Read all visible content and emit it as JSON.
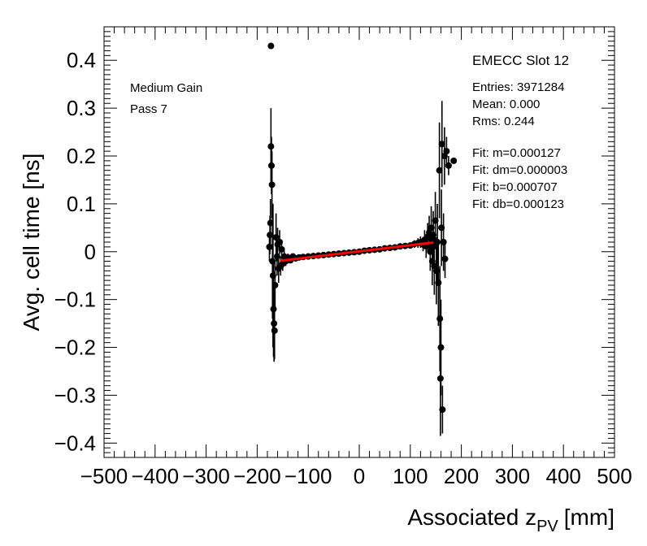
{
  "chart_data": {
    "type": "scatter",
    "xlabel_main": "Associated z",
    "xlabel_sub": "PV",
    "xlabel_unit": "[mm]",
    "ylabel": "Avg. cell time [ns]",
    "xlim": [
      -500,
      500
    ],
    "ylim": [
      -0.43,
      0.47
    ],
    "x_ticks": [
      -500,
      -400,
      -300,
      -200,
      -100,
      0,
      100,
      200,
      300,
      400,
      500
    ],
    "x_tick_labels": [
      "−500",
      "−400",
      "−300",
      "−200",
      "−100",
      "0",
      "100",
      "200",
      "300",
      "400",
      "500"
    ],
    "y_ticks": [
      -0.4,
      -0.3,
      -0.2,
      -0.1,
      0,
      0.1,
      0.2,
      0.3,
      0.4
    ],
    "y_tick_labels": [
      "−0.4",
      "−0.3",
      "−0.2",
      "−0.1",
      "0",
      "0.1",
      "0.2",
      "0.3",
      "0.4"
    ],
    "grid": false,
    "annotations_left": [
      "Medium Gain",
      "Pass 7"
    ],
    "stats_title": "EMECC Slot 12",
    "stats": [
      "Entries: 3971284",
      "Mean: 0.000",
      "Rms: 0.244"
    ],
    "fit_lines": [
      "Fit: m=0.000127",
      "Fit: dm=0.000003",
      "Fit: b=0.000707",
      "Fit: db=0.000123"
    ],
    "fit": {
      "m": 0.000127,
      "b": 0.000707,
      "x_range": [
        -155,
        145
      ],
      "color": "#ff0000"
    },
    "marker_color": "#000000",
    "points": [
      {
        "x": -173,
        "y": 0.43,
        "e": 0.0
      },
      {
        "x": -173,
        "y": 0.22,
        "e": 0.08
      },
      {
        "x": -172,
        "y": 0.18,
        "e": 0.06
      },
      {
        "x": -171,
        "y": 0.14,
        "e": 0.07
      },
      {
        "x": -175,
        "y": 0.035,
        "e": 0.04
      },
      {
        "x": -176,
        "y": 0.01,
        "e": 0.03
      },
      {
        "x": -174,
        "y": 0.06,
        "e": 0.05
      },
      {
        "x": -170,
        "y": -0.02,
        "e": 0.12
      },
      {
        "x": -169,
        "y": -0.05,
        "e": 0.15
      },
      {
        "x": -168,
        "y": -0.12,
        "e": 0.1
      },
      {
        "x": -167,
        "y": -0.15,
        "e": 0.08
      },
      {
        "x": -166,
        "y": -0.165,
        "e": 0.06
      },
      {
        "x": -165,
        "y": -0.07,
        "e": 0.05
      },
      {
        "x": -163,
        "y": 0.03,
        "e": 0.05
      },
      {
        "x": -161,
        "y": -0.01,
        "e": 0.04
      },
      {
        "x": -160,
        "y": 0.015,
        "e": 0.035
      },
      {
        "x": -158,
        "y": -0.035,
        "e": 0.03
      },
      {
        "x": -156,
        "y": 0.02,
        "e": 0.025
      },
      {
        "x": -154,
        "y": -0.03,
        "e": 0.02
      },
      {
        "x": -152,
        "y": 0.005,
        "e": 0.02
      },
      {
        "x": -150,
        "y": -0.025,
        "e": 0.015
      },
      {
        "x": -147,
        "y": -0.01,
        "e": 0.012
      },
      {
        "x": -144,
        "y": -0.02,
        "e": 0.01
      },
      {
        "x": -140,
        "y": -0.012,
        "e": 0.008
      },
      {
        "x": -135,
        "y": -0.018,
        "e": 0.006
      },
      {
        "x": -130,
        "y": -0.01,
        "e": 0.005
      },
      {
        "x": -125,
        "y": -0.014,
        "e": 0.004
      },
      {
        "x": -118,
        "y": -0.012,
        "e": 0.003
      },
      {
        "x": -110,
        "y": -0.011,
        "e": 0.003
      },
      {
        "x": -100,
        "y": -0.01,
        "e": 0.003
      },
      {
        "x": -90,
        "y": -0.009,
        "e": 0.003
      },
      {
        "x": -80,
        "y": -0.008,
        "e": 0.003
      },
      {
        "x": -70,
        "y": -0.007,
        "e": 0.003
      },
      {
        "x": -60,
        "y": -0.006,
        "e": 0.003
      },
      {
        "x": -50,
        "y": -0.005,
        "e": 0.003
      },
      {
        "x": -40,
        "y": -0.004,
        "e": 0.003
      },
      {
        "x": -30,
        "y": -0.003,
        "e": 0.003
      },
      {
        "x": -20,
        "y": -0.002,
        "e": 0.003
      },
      {
        "x": -10,
        "y": -0.001,
        "e": 0.003
      },
      {
        "x": 0,
        "y": 0.0,
        "e": 0.003
      },
      {
        "x": 10,
        "y": 0.002,
        "e": 0.003
      },
      {
        "x": 20,
        "y": 0.003,
        "e": 0.003
      },
      {
        "x": 30,
        "y": 0.004,
        "e": 0.003
      },
      {
        "x": 40,
        "y": 0.005,
        "e": 0.003
      },
      {
        "x": 50,
        "y": 0.007,
        "e": 0.003
      },
      {
        "x": 60,
        "y": 0.008,
        "e": 0.003
      },
      {
        "x": 70,
        "y": 0.009,
        "e": 0.003
      },
      {
        "x": 80,
        "y": 0.011,
        "e": 0.004
      },
      {
        "x": 90,
        "y": 0.012,
        "e": 0.005
      },
      {
        "x": 100,
        "y": 0.013,
        "e": 0.006
      },
      {
        "x": 108,
        "y": 0.016,
        "e": 0.008
      },
      {
        "x": 115,
        "y": 0.018,
        "e": 0.01
      },
      {
        "x": 120,
        "y": 0.02,
        "e": 0.012
      },
      {
        "x": 125,
        "y": 0.015,
        "e": 0.014
      },
      {
        "x": 128,
        "y": 0.025,
        "e": 0.02
      },
      {
        "x": 131,
        "y": 0.012,
        "e": 0.025
      },
      {
        "x": 134,
        "y": 0.03,
        "e": 0.03
      },
      {
        "x": 137,
        "y": 0.04,
        "e": 0.035
      },
      {
        "x": 139,
        "y": 0.0,
        "e": 0.04
      },
      {
        "x": 141,
        "y": 0.05,
        "e": 0.045
      },
      {
        "x": 143,
        "y": -0.02,
        "e": 0.05
      },
      {
        "x": 145,
        "y": 0.035,
        "e": 0.05
      },
      {
        "x": 147,
        "y": -0.03,
        "e": 0.06
      },
      {
        "x": 149,
        "y": 0.065,
        "e": 0.06
      },
      {
        "x": 151,
        "y": -0.04,
        "e": 0.07
      },
      {
        "x": 153,
        "y": 0.02,
        "e": 0.08
      },
      {
        "x": 155,
        "y": -0.065,
        "e": 0.09
      },
      {
        "x": 157,
        "y": 0.17,
        "e": 0.1
      },
      {
        "x": 158,
        "y": -0.14,
        "e": 0.11
      },
      {
        "x": 159,
        "y": -0.265,
        "e": 0.12
      },
      {
        "x": 160,
        "y": -0.2,
        "e": 0.1
      },
      {
        "x": 161,
        "y": 0.05,
        "e": 0.08
      },
      {
        "x": 162,
        "y": 0.225,
        "e": 0.09
      },
      {
        "x": 163,
        "y": -0.33,
        "e": 0.05
      },
      {
        "x": 165,
        "y": 0.02,
        "e": 0.06
      },
      {
        "x": 167,
        "y": 0.2,
        "e": 0.06
      },
      {
        "x": 168,
        "y": -0.015,
        "e": 0.04
      },
      {
        "x": 171,
        "y": 0.21,
        "e": 0.03
      },
      {
        "x": 175,
        "y": 0.18,
        "e": 0.02
      },
      {
        "x": 185,
        "y": 0.19,
        "e": 0.0
      }
    ]
  }
}
